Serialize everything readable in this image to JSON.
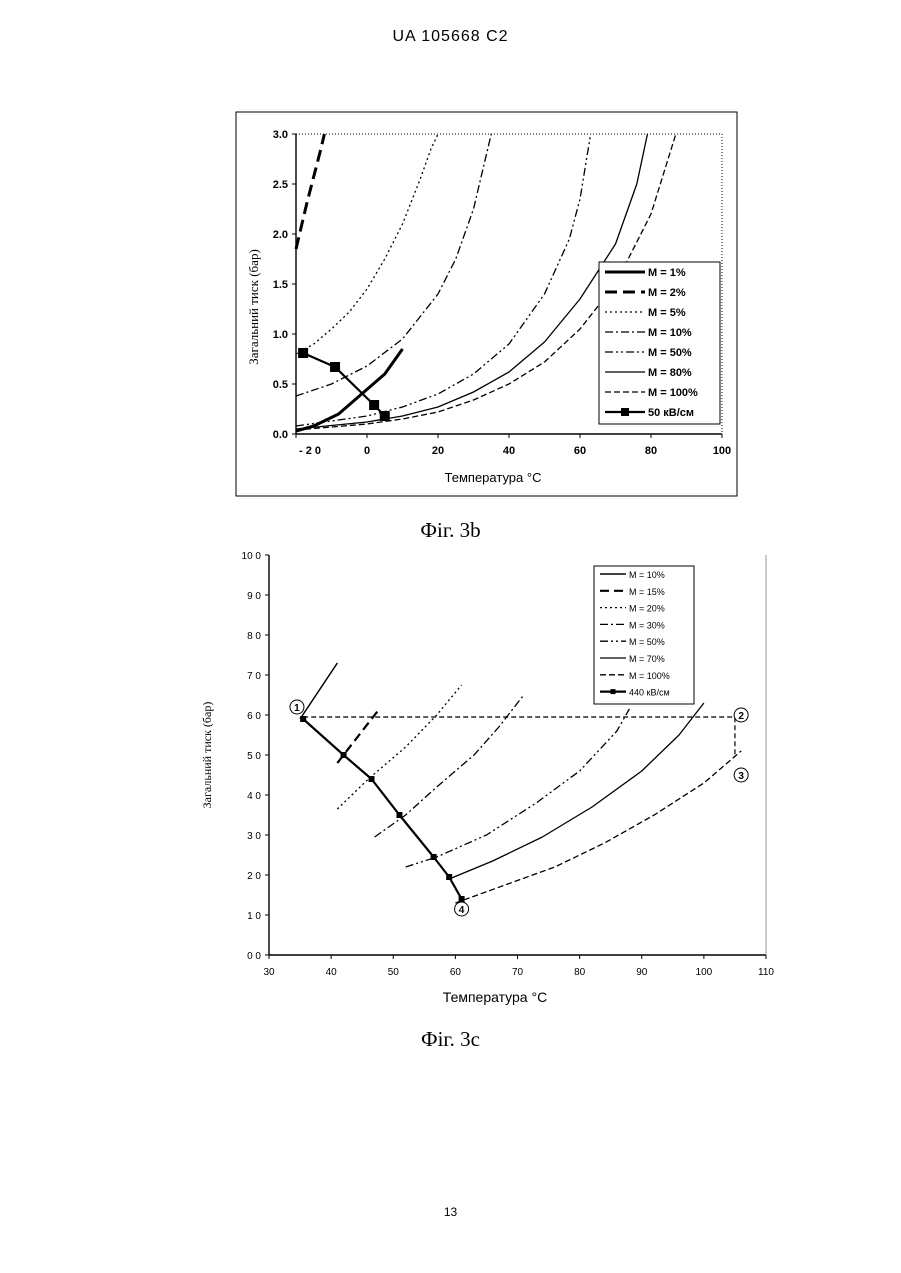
{
  "document": {
    "header": "UA   105668   C2",
    "page_number": "13"
  },
  "figures": [
    {
      "caption": "Фіг. 3b"
    },
    {
      "caption": "Фіг. 3c"
    }
  ],
  "chart_data": [
    {
      "type": "line",
      "title": "",
      "xlabel": "Температура °С",
      "ylabel": "Загальний тиск (бар)",
      "xlim": [
        -20,
        100
      ],
      "ylim": [
        0,
        3
      ],
      "x_tick_labels": [
        "- 2 0",
        "0",
        "20",
        "40",
        "60",
        "80",
        "100"
      ],
      "x_tick_values": [
        -20,
        0,
        20,
        40,
        60,
        80,
        100
      ],
      "y_tick_labels": [
        "0.0",
        "0.5",
        "1.0",
        "1.5",
        "2.0",
        "2.5",
        "3.0"
      ],
      "y_tick_values": [
        0,
        0.5,
        1,
        1.5,
        2,
        2.5,
        3
      ],
      "grid": false,
      "legend_position": "right",
      "series": [
        {
          "name": "M = 1%",
          "style": "solid-thick",
          "x": [
            -20,
            -15,
            -8,
            5,
            10
          ],
          "y": [
            0.03,
            0.08,
            0.2,
            0.6,
            0.85
          ]
        },
        {
          "name": "M = 2%",
          "style": "dash-thick",
          "x": [
            -20,
            -17,
            -13,
            -12
          ],
          "y": [
            1.85,
            2.3,
            2.85,
            3.0
          ]
        },
        {
          "name": "M = 5%",
          "style": "dotted",
          "x": [
            -20,
            -15,
            -10,
            -5,
            0,
            5,
            10,
            15,
            18,
            20
          ],
          "y": [
            0.8,
            0.9,
            1.05,
            1.22,
            1.45,
            1.75,
            2.1,
            2.55,
            2.85,
            3.0
          ]
        },
        {
          "name": "M = 10%",
          "style": "dashdot",
          "x": [
            -20,
            -10,
            0,
            10,
            20,
            25,
            30,
            35
          ],
          "y": [
            0.38,
            0.5,
            0.68,
            0.95,
            1.4,
            1.75,
            2.25,
            3.0
          ]
        },
        {
          "name": "M = 50%",
          "style": "dashdotdot",
          "x": [
            -20,
            0,
            10,
            20,
            30,
            40,
            50,
            57,
            60,
            63
          ],
          "y": [
            0.08,
            0.18,
            0.27,
            0.4,
            0.6,
            0.9,
            1.4,
            1.95,
            2.35,
            3.0
          ]
        },
        {
          "name": "M = 80%",
          "style": "solid-thin",
          "x": [
            -20,
            0,
            10,
            20,
            30,
            40,
            50,
            60,
            70,
            76,
            79
          ],
          "y": [
            0.05,
            0.12,
            0.18,
            0.27,
            0.42,
            0.62,
            0.92,
            1.35,
            1.9,
            2.5,
            3.0
          ]
        },
        {
          "name": "M = 100%",
          "style": "dashed-thin",
          "x": [
            -20,
            0,
            10,
            20,
            30,
            40,
            50,
            60,
            70,
            80,
            87
          ],
          "y": [
            0.04,
            0.1,
            0.15,
            0.22,
            0.34,
            0.5,
            0.72,
            1.05,
            1.5,
            2.2,
            3.0
          ]
        },
        {
          "name": "50 кВ/см",
          "style": "marker-line",
          "x": [
            -18,
            -9,
            2,
            5
          ],
          "y": [
            0.81,
            0.67,
            0.29,
            0.18
          ]
        }
      ]
    },
    {
      "type": "line",
      "title": "",
      "xlabel": "Температура °С",
      "ylabel": "Загальний тиск (бар)",
      "xlim": [
        30,
        110
      ],
      "ylim": [
        0,
        10
      ],
      "x_tick_labels": [
        "30",
        "40",
        "50",
        "60",
        "70",
        "80",
        "90",
        "100",
        "110"
      ],
      "x_tick_values": [
        30,
        40,
        50,
        60,
        70,
        80,
        90,
        100,
        110
      ],
      "y_tick_labels": [
        "0 0",
        "1 0",
        "2 0",
        "3 0",
        "4 0",
        "5 0",
        "6 0",
        "7 0",
        "8 0",
        "9 0",
        "10 0"
      ],
      "y_tick_values": [
        0,
        1,
        2,
        3,
        4,
        5,
        6,
        7,
        8,
        9,
        10
      ],
      "grid": false,
      "legend_position": "top-right",
      "series": [
        {
          "name": "M = 10%",
          "style": "solid",
          "x": [
            35,
            38,
            41
          ],
          "y": [
            5.9,
            6.6,
            7.3
          ]
        },
        {
          "name": "M = 15%",
          "style": "dash-long",
          "x": [
            41,
            44,
            47.5
          ],
          "y": [
            4.8,
            5.4,
            6.1
          ]
        },
        {
          "name": "M = 20%",
          "style": "dotted",
          "x": [
            41,
            46,
            52,
            57,
            61
          ],
          "y": [
            3.65,
            4.4,
            5.2,
            6.0,
            6.75
          ]
        },
        {
          "name": "M = 30%",
          "style": "dashdot",
          "x": [
            47,
            52,
            57,
            63,
            67,
            71
          ],
          "y": [
            2.95,
            3.5,
            4.2,
            5.0,
            5.7,
            6.5
          ]
        },
        {
          "name": "M = 50%",
          "style": "dashdotdot",
          "x": [
            52,
            57,
            65,
            73,
            80,
            86,
            88
          ],
          "y": [
            2.2,
            2.45,
            3.0,
            3.8,
            4.6,
            5.6,
            6.15
          ]
        },
        {
          "name": "M = 70%",
          "style": "solid-thin",
          "x": [
            59,
            66,
            74,
            82,
            90,
            96,
            100
          ],
          "y": [
            1.9,
            2.35,
            2.95,
            3.7,
            4.6,
            5.5,
            6.3
          ]
        },
        {
          "name": "M = 100%",
          "style": "dashed-thin",
          "x": [
            60,
            68,
            76,
            84,
            92,
            100,
            106
          ],
          "y": [
            1.3,
            1.75,
            2.2,
            2.8,
            3.5,
            4.3,
            5.1
          ]
        },
        {
          "name": "440 кВ/см",
          "style": "marker-line",
          "x": [
            35.5,
            42,
            46.5,
            51,
            56.5,
            59,
            61
          ],
          "y": [
            5.9,
            5.0,
            4.4,
            3.5,
            2.45,
            1.95,
            1.4
          ]
        }
      ],
      "annotations": [
        {
          "label": "1",
          "x": 34.5,
          "y": 6.2
        },
        {
          "label": "2",
          "x": 106,
          "y": 6.0
        },
        {
          "label": "3",
          "x": 106,
          "y": 4.5
        },
        {
          "label": "4",
          "x": 61,
          "y": 1.15
        }
      ],
      "cycle_path": {
        "x": [
          35.5,
          105,
          105
        ],
        "y": [
          5.95,
          5.95,
          5.0
        ]
      }
    }
  ]
}
